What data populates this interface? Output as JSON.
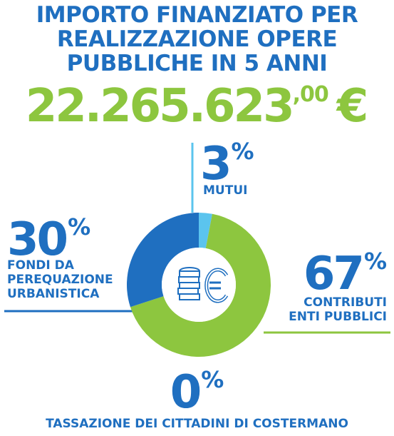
{
  "header": {
    "title_lines": [
      "IMPORTO FINANZIATO PER",
      "REALIZZAZIONE OPERE",
      "PUBBLICHE IN 5 ANNI"
    ],
    "amount_int": "22.265.623",
    "amount_dec": ",00",
    "amount_currency": "€"
  },
  "colors": {
    "blue": "#1f6fc0",
    "green": "#8dc63f",
    "light_blue": "#5bc4ee"
  },
  "chart_data": {
    "type": "pie",
    "style": "donut",
    "center_icon": "coins-euro-icon",
    "slices": [
      {
        "pct_number": "3",
        "value": 3,
        "label_lines": [
          "MUTUI"
        ],
        "color": "#5bc4ee"
      },
      {
        "pct_number": "67",
        "value": 67,
        "label_lines": [
          "CONTRIBUTI",
          "ENTI PUBBLICI"
        ],
        "color": "#8dc63f"
      },
      {
        "pct_number": "0",
        "value": 0,
        "label_lines": [
          "TASSAZIONE DEI CITTADINI DI COSTERMANO"
        ],
        "color": "#1f6fc0"
      },
      {
        "pct_number": "30",
        "value": 30,
        "label_lines": [
          "FONDI DA",
          "PEREQUAZIONE",
          "URBANISTICA"
        ],
        "color": "#1f6fc0"
      }
    ],
    "percent_symbol": "%"
  }
}
